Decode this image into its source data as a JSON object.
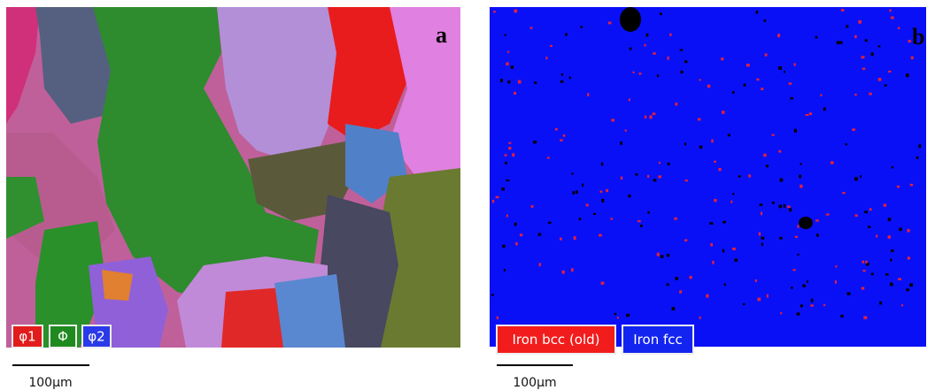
{
  "panels": [
    {
      "label": "a",
      "legend": [
        "φ1",
        "Φ",
        "φ2"
      ],
      "scale_bar": "100µm"
    },
    {
      "label": "b",
      "legend": [
        "Iron bcc (old)",
        "Iron fcc"
      ],
      "scale_bar": "100µm"
    }
  ]
}
